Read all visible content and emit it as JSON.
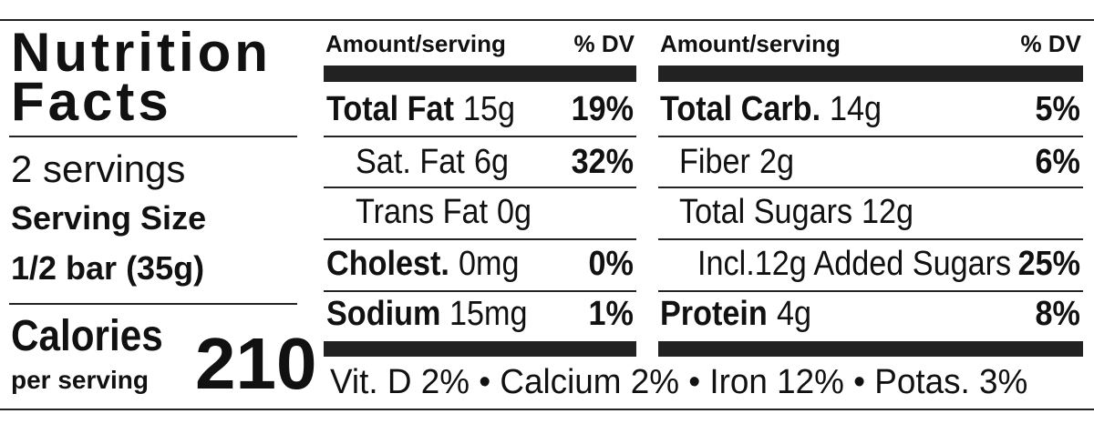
{
  "title": {
    "line1": "Nutrition",
    "line2": "Facts"
  },
  "servings": {
    "count": "2 servings",
    "size_label": "Serving Size",
    "size": "1/2 bar (35g)"
  },
  "calories": {
    "label": "Calories",
    "sub": "per serving",
    "value": "210"
  },
  "columns": [
    {
      "header": {
        "amount": "Amount/serving",
        "dv": "% DV"
      },
      "rows": [
        {
          "label": "Total Fat",
          "amount": "15g",
          "dv": "19%"
        },
        {
          "label": "Sat. Fat",
          "amount": "6g",
          "dv": "32%"
        },
        {
          "label": "Trans Fat",
          "amount": "0g"
        },
        {
          "label": "Cholest.",
          "amount": "0mg",
          "dv": "0%"
        },
        {
          "label": "Sodium",
          "amount": "15mg",
          "dv": "1%"
        }
      ]
    },
    {
      "header": {
        "amount": "Amount/serving",
        "dv": "% DV"
      },
      "rows": [
        {
          "label": "Total Carb.",
          "amount": "14g",
          "dv": "5%"
        },
        {
          "label": "Fiber",
          "amount": "2g",
          "dv": "6%"
        },
        {
          "label": "Total Sugars",
          "amount": "12g"
        },
        {
          "label": "Incl.12g Added Sugars",
          "dv": "25%"
        },
        {
          "label": "Protein",
          "amount": "4g",
          "dv": "8%"
        }
      ]
    }
  ],
  "footer": "Vit. D 2% • Calcium 2% • Iron 12% • Potas. 3%"
}
